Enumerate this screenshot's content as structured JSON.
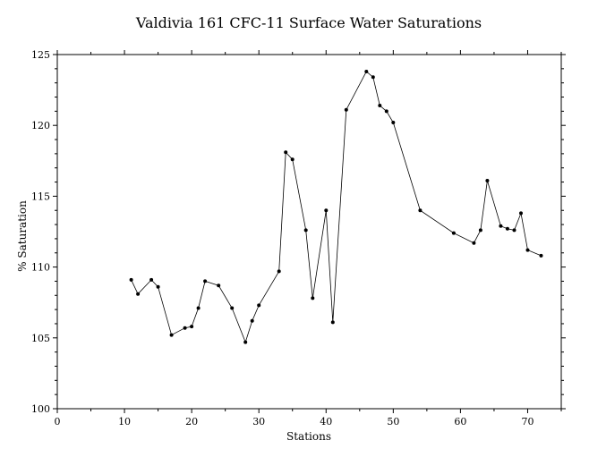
{
  "chart_data": {
    "type": "line",
    "title": "Valdivia 161 CFC-11 Surface Water Saturations",
    "xlabel": "Stations",
    "ylabel": "% Saturation",
    "xlim": [
      0,
      75
    ],
    "ylim": [
      100,
      125
    ],
    "xticks": [
      0,
      10,
      20,
      30,
      40,
      50,
      60,
      70
    ],
    "yticks": [
      100,
      105,
      110,
      115,
      120,
      125
    ],
    "grid": false,
    "legend": "none",
    "series": [
      {
        "color": "#000000",
        "x": [
          11,
          12,
          14,
          15,
          17,
          19,
          20,
          21,
          22,
          24,
          26,
          28,
          29,
          30,
          33,
          34,
          35,
          37,
          38,
          40,
          41,
          43,
          46,
          47,
          48,
          49,
          50,
          54,
          59,
          62,
          63,
          64,
          66,
          67,
          68,
          69,
          70,
          72
        ],
        "y": [
          109.1,
          108.1,
          109.1,
          108.6,
          105.2,
          105.7,
          105.8,
          107.1,
          109.0,
          108.7,
          107.1,
          104.7,
          106.2,
          107.3,
          109.7,
          118.1,
          117.6,
          112.6,
          107.8,
          114.0,
          106.1,
          121.1,
          123.8,
          123.4,
          121.4,
          121.0,
          120.2,
          114.0,
          112.4,
          111.7,
          112.6,
          116.1,
          112.9,
          112.7,
          112.6,
          113.8,
          111.2,
          110.8
        ]
      }
    ]
  }
}
